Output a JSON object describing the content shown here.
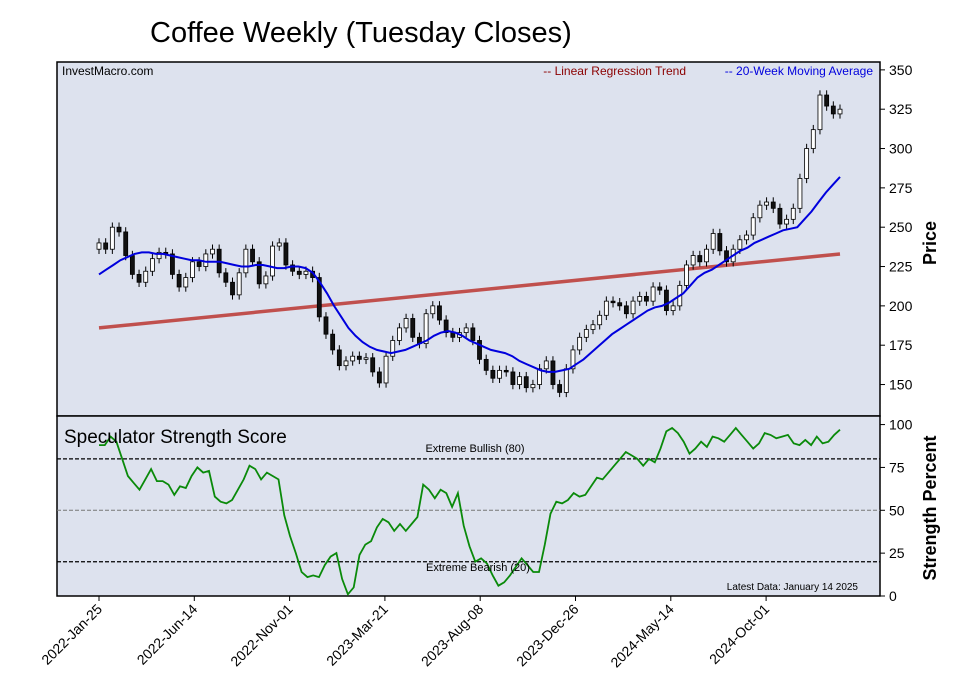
{
  "chart_data": {
    "title": "Coffee Weekly (Tuesday Closes)",
    "source_label": "InvestMacro.com",
    "price_panel": {
      "type": "candlestick",
      "ylabel": "Price",
      "ylim": [
        130,
        355
      ],
      "yticks": [
        "150",
        "175",
        "200",
        "225",
        "250",
        "275",
        "300",
        "325",
        "350"
      ],
      "legend": {
        "trend_label": "-- Linear Regression Trend",
        "ma_label": "-- 20-Week Moving Average",
        "trend_color": "#8b0000",
        "ma_color": "#0000dd"
      },
      "closes": [
        240,
        236,
        250,
        247,
        232,
        220,
        215,
        222,
        230,
        234,
        233,
        220,
        212,
        218,
        228,
        225,
        233,
        236,
        221,
        215,
        207,
        221,
        236,
        228,
        214,
        219,
        238,
        240,
        226,
        222,
        220,
        222,
        218,
        193,
        182,
        172,
        162,
        165,
        168,
        166,
        167,
        158,
        151,
        168,
        178,
        186,
        192,
        180,
        176,
        195,
        200,
        191,
        183,
        180,
        183,
        186,
        178,
        166,
        159,
        154,
        159,
        158,
        150,
        155,
        148,
        150,
        160,
        165,
        150,
        145,
        160,
        172,
        180,
        185,
        188,
        194,
        203,
        202,
        200,
        195,
        203,
        206,
        203,
        212,
        210,
        197,
        200,
        213,
        226,
        232,
        228,
        236,
        246,
        235,
        228,
        236,
        242,
        245,
        256,
        264,
        266,
        262,
        252,
        255,
        262,
        281,
        300,
        312,
        334,
        327,
        322,
        325
      ],
      "ma20": [
        220,
        223,
        226,
        229,
        231,
        233,
        234,
        234,
        233,
        233,
        232,
        231,
        230,
        229,
        229,
        228,
        228,
        228,
        227,
        226,
        225,
        225,
        226,
        226,
        225,
        224,
        224,
        225,
        225,
        224,
        221,
        215,
        208,
        200,
        193,
        186,
        181,
        177,
        174,
        172,
        171,
        170,
        171,
        172,
        174,
        176,
        178,
        181,
        183,
        184,
        183,
        181,
        178,
        176,
        174,
        172,
        171,
        170,
        168,
        165,
        163,
        161,
        159,
        158,
        158,
        159,
        160,
        163,
        166,
        170,
        174,
        178,
        182,
        185,
        188,
        191,
        194,
        197,
        199,
        200,
        202,
        205,
        208,
        213,
        218,
        221,
        223,
        226,
        229,
        232,
        235,
        237,
        240,
        242,
        244,
        246,
        248,
        249,
        250,
        255,
        260,
        266,
        272,
        277,
        282
      ],
      "trend_start": 186,
      "trend_end": 233
    },
    "strength_panel": {
      "title": "Speculator Strength Score",
      "ylabel": "Strength Percent",
      "ylim": [
        0,
        105
      ],
      "yticks": [
        "0",
        "25",
        "50",
        "75",
        "100"
      ],
      "bull_label": "Extreme Bullish (80)",
      "bear_label": "Extreme Bearish (20)",
      "bull_level": 80,
      "mid_level": 50,
      "bear_level": 20,
      "latest_label": "Latest Data: January 14 2025",
      "values": [
        88,
        88,
        93,
        90,
        80,
        70,
        66,
        62,
        68,
        74,
        67,
        67,
        65,
        59,
        64,
        63,
        70,
        75,
        72,
        73,
        58,
        55,
        54,
        56,
        62,
        68,
        76,
        74,
        68,
        72,
        70,
        68,
        47,
        35,
        25,
        14,
        11,
        12,
        11,
        18,
        23,
        25,
        10,
        1,
        5,
        24,
        30,
        32,
        40,
        45,
        43,
        38,
        42,
        38,
        42,
        46,
        65,
        62,
        57,
        62,
        60,
        52,
        60,
        41,
        29,
        20,
        22,
        19,
        12,
        6,
        8,
        12,
        17,
        22,
        18,
        14,
        14,
        30,
        48,
        55,
        54,
        56,
        60,
        58,
        59,
        64,
        69,
        68,
        72,
        76,
        80,
        84,
        82,
        80,
        76,
        80,
        78,
        86,
        96,
        98,
        95,
        90,
        83,
        86,
        90,
        87,
        93,
        92,
        90,
        94,
        98,
        94,
        90,
        86,
        89,
        95,
        94,
        92,
        93,
        94,
        89,
        88,
        91,
        88,
        93,
        89,
        90,
        94,
        97
      ],
      "values_note": ""
    },
    "x_axis": {
      "tick_labels": [
        "2022-Jan-25",
        "2022-Jun-14",
        "2022-Nov-01",
        "2023-Mar-21",
        "2023-Aug-08",
        "2023-Dec-26",
        "2024-May-14",
        "2024-Oct-01"
      ]
    }
  }
}
